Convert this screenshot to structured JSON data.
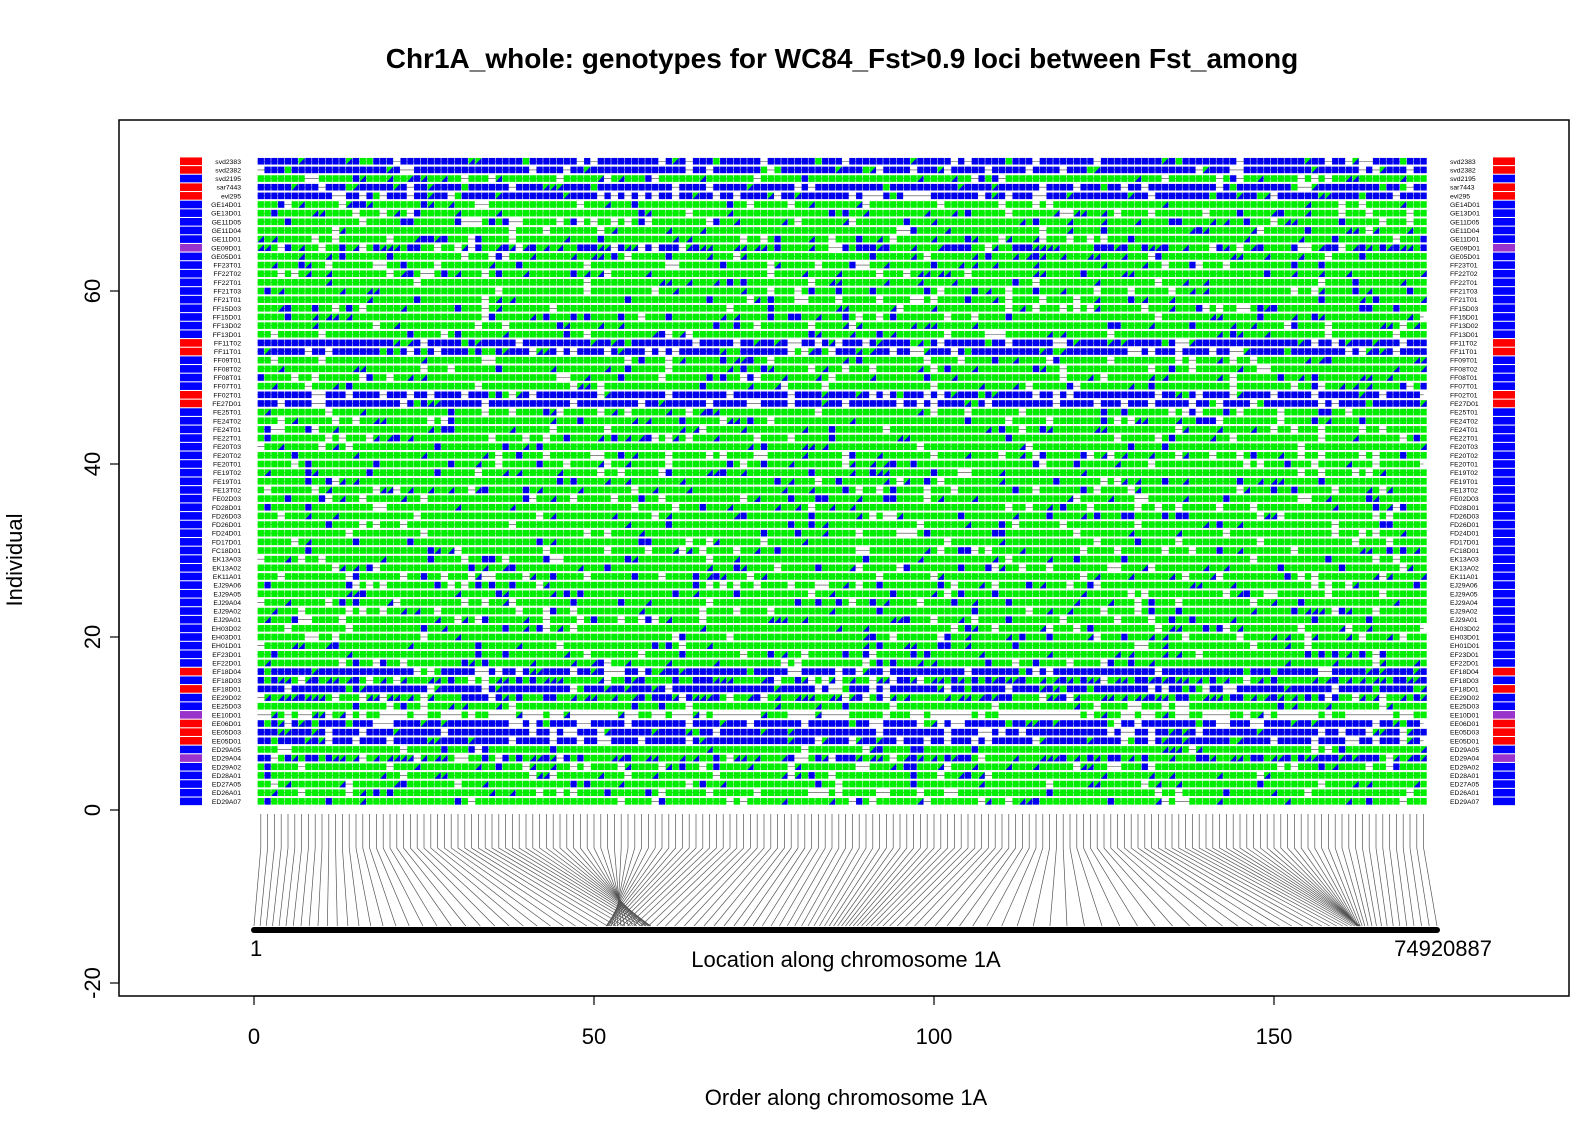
{
  "chart_data": {
    "type": "heatmap",
    "title": "Chr1A_whole: genotypes for WC84_Fst>0.9 loci between Fst_among",
    "xlabel": "Order along chromosome 1A",
    "ylabel": "Individual",
    "xlim": [
      -20,
      195
    ],
    "ylim": [
      -20,
      80
    ],
    "x_ticks": [
      "0",
      "50",
      "100",
      "150"
    ],
    "y_ticks": [
      "-20",
      "0",
      "20",
      "40",
      "60"
    ],
    "chromosome_label": "Location along chromosome 1A",
    "chromosome_start": "1",
    "chromosome_end": "74920887",
    "n_loci": 172,
    "legend": "none",
    "grid": false,
    "colors": {
      "hom_ref": "#00ee00",
      "het": "#0000ee",
      "hom_alt": "#0000ee",
      "group_red": "#ff0000",
      "group_blue": "#0000ff",
      "group_purple": "#9933cc",
      "connector": "#555555",
      "chromosome_bar": "#000000"
    },
    "individuals": [
      {
        "name": "svd2383",
        "group": "red",
        "profile": "alt"
      },
      {
        "name": "svd2382",
        "group": "red",
        "profile": "alt"
      },
      {
        "name": "svd2195",
        "group": "blue",
        "profile": "green"
      },
      {
        "name": "sar7443",
        "group": "red",
        "profile": "alt"
      },
      {
        "name": "evl295",
        "group": "red",
        "profile": "alt"
      },
      {
        "name": "GE14D01",
        "group": "blue",
        "profile": "green"
      },
      {
        "name": "GE13D01",
        "group": "blue",
        "profile": "green"
      },
      {
        "name": "GE11D05",
        "group": "blue",
        "profile": "green"
      },
      {
        "name": "GE11D04",
        "group": "blue",
        "profile": "green"
      },
      {
        "name": "GE11D01",
        "group": "blue",
        "profile": "green"
      },
      {
        "name": "GE09D01",
        "group": "purple",
        "profile": "mixed"
      },
      {
        "name": "GE05D01",
        "group": "blue",
        "profile": "green"
      },
      {
        "name": "FF23T01",
        "group": "blue",
        "profile": "green"
      },
      {
        "name": "FF22T02",
        "group": "blue",
        "profile": "green"
      },
      {
        "name": "FF22T01",
        "group": "blue",
        "profile": "green"
      },
      {
        "name": "FF21T03",
        "group": "blue",
        "profile": "green"
      },
      {
        "name": "FF21T01",
        "group": "blue",
        "profile": "green"
      },
      {
        "name": "FF15D03",
        "group": "blue",
        "profile": "green"
      },
      {
        "name": "FF15D01",
        "group": "blue",
        "profile": "green"
      },
      {
        "name": "FF13D02",
        "group": "blue",
        "profile": "green"
      },
      {
        "name": "FF13D01",
        "group": "blue",
        "profile": "green"
      },
      {
        "name": "FF11T02",
        "group": "red",
        "profile": "alt"
      },
      {
        "name": "FF11T01",
        "group": "red",
        "profile": "alt"
      },
      {
        "name": "FF09T01",
        "group": "blue",
        "profile": "green"
      },
      {
        "name": "FF08T02",
        "group": "blue",
        "profile": "green"
      },
      {
        "name": "FF08T01",
        "group": "blue",
        "profile": "green"
      },
      {
        "name": "FF07T01",
        "group": "blue",
        "profile": "green"
      },
      {
        "name": "FF02T01",
        "group": "red",
        "profile": "alt"
      },
      {
        "name": "FE27D01",
        "group": "red",
        "profile": "alt"
      },
      {
        "name": "FE25T01",
        "group": "blue",
        "profile": "green"
      },
      {
        "name": "FE24T02",
        "group": "blue",
        "profile": "green"
      },
      {
        "name": "FE24T01",
        "group": "blue",
        "profile": "green"
      },
      {
        "name": "FE22T01",
        "group": "blue",
        "profile": "green"
      },
      {
        "name": "FE20T03",
        "group": "blue",
        "profile": "green"
      },
      {
        "name": "FE20T02",
        "group": "blue",
        "profile": "green"
      },
      {
        "name": "FE20T01",
        "group": "blue",
        "profile": "green"
      },
      {
        "name": "FE19T02",
        "group": "blue",
        "profile": "green"
      },
      {
        "name": "FE19T01",
        "group": "blue",
        "profile": "green"
      },
      {
        "name": "FE13T02",
        "group": "blue",
        "profile": "green"
      },
      {
        "name": "FE02D03",
        "group": "blue",
        "profile": "green"
      },
      {
        "name": "FD28D01",
        "group": "blue",
        "profile": "green"
      },
      {
        "name": "FD26D03",
        "group": "blue",
        "profile": "green"
      },
      {
        "name": "FD26D01",
        "group": "blue",
        "profile": "green"
      },
      {
        "name": "FD24D01",
        "group": "blue",
        "profile": "green"
      },
      {
        "name": "FD17D01",
        "group": "blue",
        "profile": "green"
      },
      {
        "name": "FC18D01",
        "group": "blue",
        "profile": "green"
      },
      {
        "name": "EK13A03",
        "group": "blue",
        "profile": "green"
      },
      {
        "name": "EK13A02",
        "group": "blue",
        "profile": "green"
      },
      {
        "name": "EK11A01",
        "group": "blue",
        "profile": "green"
      },
      {
        "name": "EJ29A06",
        "group": "blue",
        "profile": "green"
      },
      {
        "name": "EJ29A05",
        "group": "blue",
        "profile": "green"
      },
      {
        "name": "EJ29A04",
        "group": "blue",
        "profile": "green"
      },
      {
        "name": "EJ29A02",
        "group": "blue",
        "profile": "green"
      },
      {
        "name": "EJ29A01",
        "group": "blue",
        "profile": "green"
      },
      {
        "name": "EH03D02",
        "group": "blue",
        "profile": "green"
      },
      {
        "name": "EH03D01",
        "group": "blue",
        "profile": "green"
      },
      {
        "name": "EH01D01",
        "group": "blue",
        "profile": "green"
      },
      {
        "name": "EF23D01",
        "group": "blue",
        "profile": "green"
      },
      {
        "name": "EF22D01",
        "group": "blue",
        "profile": "green"
      },
      {
        "name": "EF18D04",
        "group": "red",
        "profile": "alt"
      },
      {
        "name": "EF18D03",
        "group": "blue",
        "profile": "mixed"
      },
      {
        "name": "EF18D01",
        "group": "red",
        "profile": "alt"
      },
      {
        "name": "EE29D02",
        "group": "blue",
        "profile": "mixed"
      },
      {
        "name": "EE25D03",
        "group": "blue",
        "profile": "green"
      },
      {
        "name": "EE10D01",
        "group": "purple",
        "profile": "sparse"
      },
      {
        "name": "EE06D01",
        "group": "red",
        "profile": "alt"
      },
      {
        "name": "EE05D03",
        "group": "red",
        "profile": "alt"
      },
      {
        "name": "EE05D01",
        "group": "red",
        "profile": "alt"
      },
      {
        "name": "ED29A05",
        "group": "blue",
        "profile": "green"
      },
      {
        "name": "ED29A04",
        "group": "purple",
        "profile": "mixed"
      },
      {
        "name": "ED29A02",
        "group": "blue",
        "profile": "green"
      },
      {
        "name": "ED28A01",
        "group": "blue",
        "profile": "green"
      },
      {
        "name": "ED27A05",
        "group": "blue",
        "profile": "green"
      },
      {
        "name": "ED26A01",
        "group": "blue",
        "profile": "green"
      },
      {
        "name": "ED29A07",
        "group": "blue",
        "profile": "green"
      }
    ]
  }
}
